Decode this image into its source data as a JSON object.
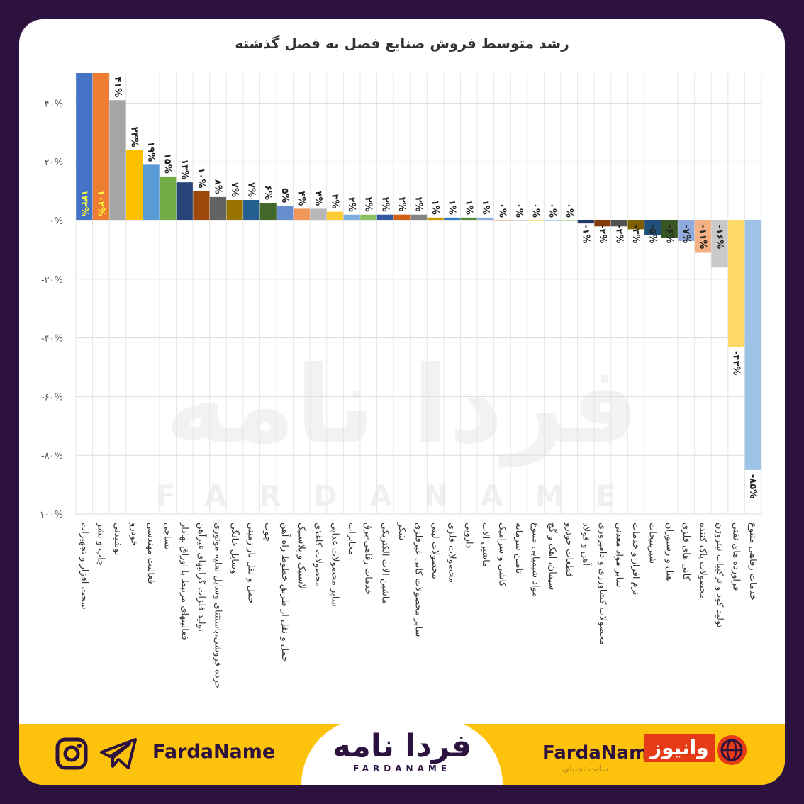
{
  "chart_data": {
    "type": "bar",
    "title": "رشد متوسط فروش صنایع فصل به فصل گذشته",
    "xlabel": "",
    "ylabel": "",
    "ylim": [
      -100,
      50
    ],
    "grid": true,
    "legend": "none",
    "yticks": [
      40,
      20,
      0,
      -20,
      -40,
      -60,
      -80,
      -100
    ],
    "ytick_labels": [
      "۴۰%",
      "۲۰%",
      "۰%",
      "-۲۰%",
      "-۴۰%",
      "-۶۰%",
      "-۸۰%",
      "-۱۰۰%"
    ],
    "categories": [
      "سخت افزار و تجهیزات",
      "چاپ و نشر",
      "نوشیدنی",
      "خودرو",
      "فعالیت مهندسی",
      "نساجی",
      "فعالیتهای مرتبط با اوراق بهادار",
      "تولید فلزات گرانبهای غیرآهن",
      "خرده فروشی،باستثنای وسایل نقلیه موتوری",
      "وسایل خانگی",
      "حمل و نقل بار زمینی",
      "چوب",
      "حمل و نقل از طریق خطوط راه آهن",
      "لاستیک و پلاستیک",
      "محصولات کاغذی",
      "سایر محصولات غذایی",
      "مخابرات",
      "خدمات رفاهی-برق",
      "ماشین الات الکتریکی",
      "شکر",
      "سایر محصولات کانی غیرفلزی",
      "محصولات لبنی",
      "محصولات فلزی",
      "دارویی",
      "ماشین الات",
      "کاشی و سرامیک",
      "تامین سرمایه",
      "مواد شیمیایی متنوع",
      "سیمان، اهک و گچ",
      "قطعات خودرو",
      "آهن و فولاد",
      "محصولات کشاورزی و دامپروری",
      "سایر مواد معدنی",
      "نرم افزار و خدمات",
      "شیرینیجات",
      "هتل و رستوران",
      "کانی های فلزی",
      "محصولات پاک کننده",
      "تولید کود و ترکیبات نیتروژن",
      "فراورده های نفتی",
      "خدمات رفاهی متنوع"
    ],
    "values": [
      143,
      102,
      41,
      24,
      19,
      15,
      13,
      10,
      8,
      7,
      7,
      6,
      5,
      4,
      4,
      3,
      2,
      2,
      2,
      2,
      2,
      1,
      1,
      1,
      1,
      0,
      0,
      0,
      0,
      0,
      -1,
      -2,
      -2,
      -3,
      -5,
      -6,
      -7,
      -11,
      -16,
      -43,
      -85
    ],
    "data_labels": [
      "۱۴۳%",
      "۱۰۲%",
      "۴۱%",
      "۲۴%",
      "۱۹%",
      "۱۵%",
      "۱۳%",
      "۱۰%",
      "۸%",
      "۷%",
      "۷%",
      "۶%",
      "۵%",
      "۴%",
      "۴%",
      "۳%",
      "۲%",
      "۲%",
      "۲%",
      "۲%",
      "۲%",
      "۱%",
      "۱%",
      "۱%",
      "۱%",
      "۰%",
      "۰%",
      "۰%",
      "۰%",
      "۰%",
      "-۱%",
      "-۲%",
      "-۲%",
      "-۳%",
      "-۵%",
      "-۶%",
      "-۷%",
      "-۱۱%",
      "-۱۶%",
      "-۴۳%",
      "-۸۵%"
    ],
    "colors": [
      "#4472c4",
      "#ed7d31",
      "#a5a5a5",
      "#ffc000",
      "#5b9bd5",
      "#70ad47",
      "#264478",
      "#9e480e",
      "#636363",
      "#997300",
      "#255e91",
      "#43682b",
      "#698ed0",
      "#f1975a",
      "#b7b7b7",
      "#ffcd33",
      "#7cafdd",
      "#8cc168",
      "#335aa1",
      "#d26012",
      "#848484",
      "#cc9a00",
      "#327dc2",
      "#5a8a39",
      "#8faadc",
      "#f4b183",
      "#c9c9c9",
      "#ffd966",
      "#9dc3e6",
      "#a9d18e",
      "#203864",
      "#843c0c",
      "#525252",
      "#7f6000",
      "#1f4e79",
      "#375623",
      "#8faadc",
      "#f4b183",
      "#c9c9c9",
      "#ffd966",
      "#9dc3e6"
    ]
  },
  "watermark": {
    "text": "فردا نامه",
    "latin": "FARDANAME"
  },
  "footer": {
    "social_handle": "FardaName",
    "logo_text": "فردا نامه",
    "logo_latin": "FARDANAME",
    "right_handle": "FardaName",
    "partner_logo": "وانیوز",
    "partner_sub": "سایت تحلیلی",
    "icons": [
      "instagram-icon",
      "telegram-icon",
      "globe-icon"
    ],
    "accent_color": "#fcc20c",
    "brand_color": "#2d1240"
  }
}
